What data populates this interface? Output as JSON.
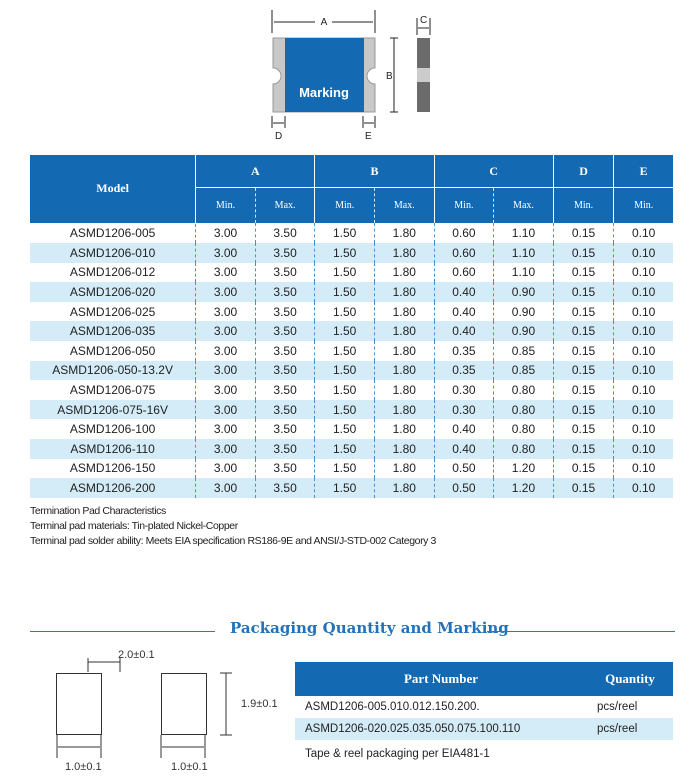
{
  "diagram": {
    "marking": "Marking",
    "labels": [
      "A",
      "B",
      "C",
      "D",
      "E"
    ]
  },
  "spec_table": {
    "headers": {
      "model": "Model",
      "groups": [
        "A",
        "B",
        "C",
        "D",
        "E"
      ],
      "sub": [
        "Min.",
        "Max.",
        "Min.",
        "Max.",
        "Min.",
        "Max.",
        "Min.",
        "Min."
      ]
    },
    "rows": [
      [
        "ASMD1206-005",
        "3.00",
        "3.50",
        "1.50",
        "1.80",
        "0.60",
        "1.10",
        "0.15",
        "0.10"
      ],
      [
        "ASMD1206-010",
        "3.00",
        "3.50",
        "1.50",
        "1.80",
        "0.60",
        "1.10",
        "0.15",
        "0.10"
      ],
      [
        "ASMD1206-012",
        "3.00",
        "3.50",
        "1.50",
        "1.80",
        "0.60",
        "1.10",
        "0.15",
        "0.10"
      ],
      [
        "ASMD1206-020",
        "3.00",
        "3.50",
        "1.50",
        "1.80",
        "0.40",
        "0.90",
        "0.15",
        "0.10"
      ],
      [
        "ASMD1206-025",
        "3.00",
        "3.50",
        "1.50",
        "1.80",
        "0.40",
        "0.90",
        "0.15",
        "0.10"
      ],
      [
        "ASMD1206-035",
        "3.00",
        "3.50",
        "1.50",
        "1.80",
        "0.40",
        "0.90",
        "0.15",
        "0.10"
      ],
      [
        "ASMD1206-050",
        "3.00",
        "3.50",
        "1.50",
        "1.80",
        "0.35",
        "0.85",
        "0.15",
        "0.10"
      ],
      [
        "ASMD1206-050-13.2V",
        "3.00",
        "3.50",
        "1.50",
        "1.80",
        "0.35",
        "0.85",
        "0.15",
        "0.10"
      ],
      [
        "ASMD1206-075",
        "3.00",
        "3.50",
        "1.50",
        "1.80",
        "0.30",
        "0.80",
        "0.15",
        "0.10"
      ],
      [
        "ASMD1206-075-16V",
        "3.00",
        "3.50",
        "1.50",
        "1.80",
        "0.30",
        "0.80",
        "0.15",
        "0.10"
      ],
      [
        "ASMD1206-100",
        "3.00",
        "3.50",
        "1.50",
        "1.80",
        "0.40",
        "0.80",
        "0.15",
        "0.10"
      ],
      [
        "ASMD1206-110",
        "3.00",
        "3.50",
        "1.50",
        "1.80",
        "0.40",
        "0.80",
        "0.15",
        "0.10"
      ],
      [
        "ASMD1206-150",
        "3.00",
        "3.50",
        "1.50",
        "1.80",
        "0.50",
        "1.20",
        "0.15",
        "0.10"
      ],
      [
        "ASMD1206-200",
        "3.00",
        "3.50",
        "1.50",
        "1.80",
        "0.50",
        "1.20",
        "0.15",
        "0.10"
      ]
    ]
  },
  "notes": [
    "Termination Pad Characteristics",
    "Terminal pad materials:  Tin-plated Nickel-Copper",
    "Terminal pad solder ability:  Meets EIA specification RS186-9E and ANSI/J-STD-002 Category 3"
  ],
  "packaging": {
    "title": "Packaging Quantity and Marking",
    "dims": {
      "gap": "2.0±0.1",
      "height": "1.9±0.1",
      "width1": "1.0±0.1",
      "width2": "1.0±0.1"
    },
    "table": {
      "headers": [
        "Part Number",
        "Quantity"
      ],
      "rows": [
        [
          "ASMD1206-005.010.012.150.200.",
          "pcs/reel"
        ],
        [
          "ASMD1206-020.025.035.050.075.100.110",
          "pcs/reel"
        ]
      ],
      "note": "Tape & reel packaging per EIA481-1"
    }
  },
  "colors": {
    "brand_blue": "#1469b3",
    "row_alt": "#d4ecf8"
  }
}
